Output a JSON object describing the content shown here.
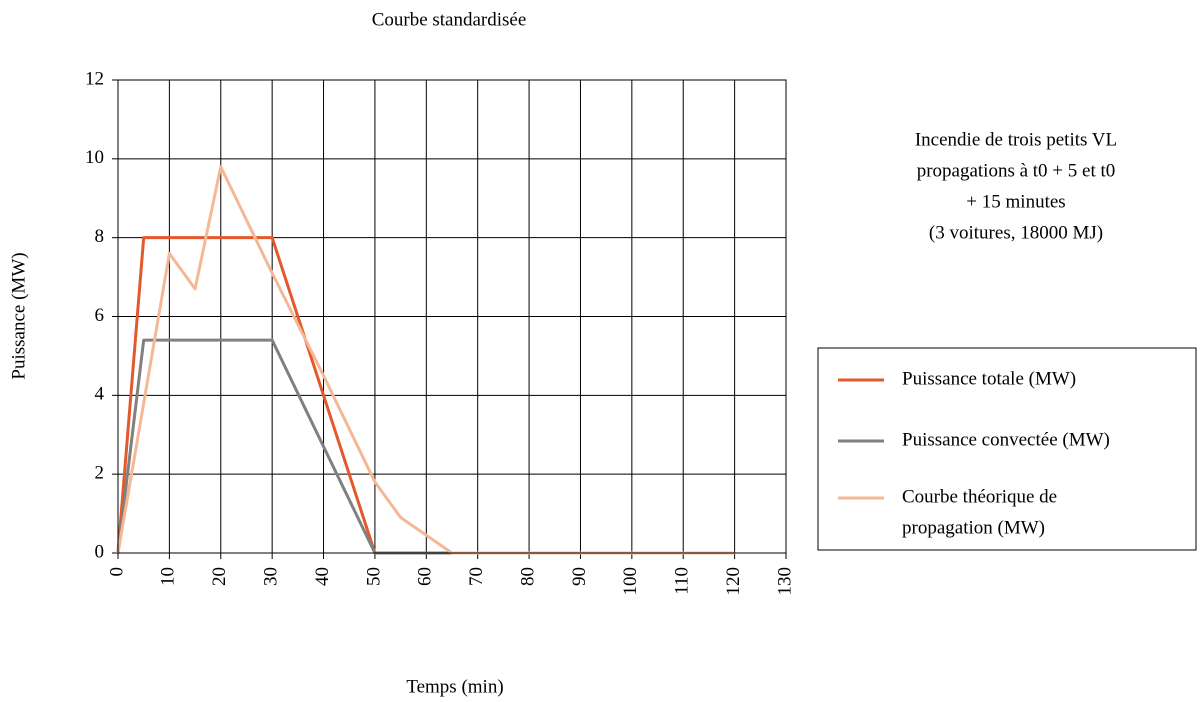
{
  "chart_data": {
    "type": "line",
    "title": "Courbe standardisée",
    "xlabel": "Temps (min)",
    "ylabel": "Puissance (MW)",
    "annotation": [
      "Incendie de trois petits VL",
      "propagations à t0 + 5 et t0",
      "+ 15 minutes",
      "(3 voitures, 18000 MJ)"
    ],
    "xlim": [
      0,
      130
    ],
    "xticks": [
      0,
      10,
      20,
      30,
      40,
      50,
      60,
      70,
      80,
      90,
      100,
      110,
      120,
      130
    ],
    "ylim": [
      0,
      12
    ],
    "yticks": [
      0,
      2,
      4,
      6,
      8,
      10,
      12
    ],
    "grid": true,
    "legend": "right",
    "series": [
      {
        "name": "Puissance totale (MW)",
        "color": "#e4592c",
        "x": [
          0,
          5,
          30,
          50,
          120
        ],
        "values": [
          0,
          8,
          8,
          0,
          0
        ]
      },
      {
        "name": "Puissance convectée (MW)",
        "color": "#808080",
        "x": [
          0,
          5,
          30,
          50,
          120
        ],
        "values": [
          0,
          5.4,
          5.4,
          0,
          0
        ]
      },
      {
        "name": [
          "Courbe théorique de",
          "propagation (MW)"
        ],
        "color": "#f5b896",
        "x": [
          0,
          10,
          15,
          20,
          30,
          40,
          50,
          55,
          65,
          120
        ],
        "values": [
          0,
          7.6,
          6.7,
          9.8,
          7.1,
          4.5,
          1.8,
          0.9,
          0,
          0
        ]
      }
    ]
  }
}
